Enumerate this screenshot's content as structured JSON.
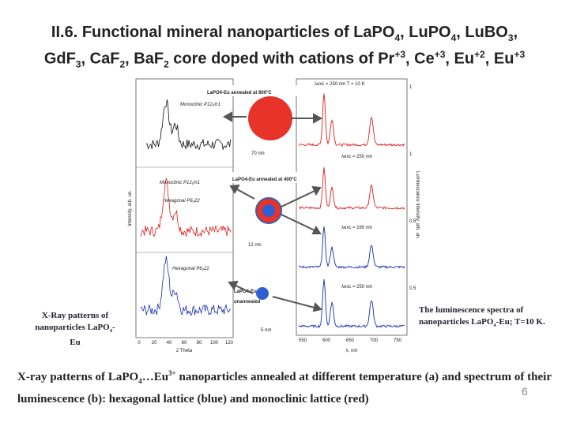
{
  "slide": {
    "title": {
      "line1": [
        {
          "text": "II.6. Functional mineral nanoparticles of LaPO"
        },
        {
          "text": "4",
          "pos": "sub"
        },
        {
          "text": ", LuPO"
        },
        {
          "text": "4",
          "pos": "sub"
        },
        {
          "text": ", LuBO"
        },
        {
          "text": "3",
          "pos": "sub"
        },
        {
          "text": ","
        }
      ],
      "line2": [
        {
          "text": "GdF"
        },
        {
          "text": "3",
          "pos": "sub"
        },
        {
          "text": ", CaF"
        },
        {
          "text": "2",
          "pos": "sub"
        },
        {
          "text": ", BaF"
        },
        {
          "text": "2",
          "pos": "sub"
        },
        {
          "text": " core doped with cations of Pr"
        },
        {
          "text": "+3",
          "pos": "sup"
        },
        {
          "text": ", Ce"
        },
        {
          "text": "+3",
          "pos": "sup"
        },
        {
          "text": ", Eu"
        },
        {
          "text": "+2",
          "pos": "sup"
        },
        {
          "text": ", Eu"
        },
        {
          "text": "+3",
          "pos": "sup"
        }
      ]
    },
    "figure": {
      "xrd_axis_label": "Intensity, arb. un.",
      "xrd_x_label": "2 Theta",
      "xrd_x_ticks": [
        "0",
        "20",
        "40",
        "60",
        "80",
        "100",
        "120"
      ],
      "lum_axis_label": "Luminescence Intensity, arb. un.",
      "lum_x_label": "λ, nm",
      "lum_x_ticks": [
        "550",
        "600",
        "650",
        "700",
        "750"
      ],
      "lum_y_ticks": [
        "1",
        "1",
        "0.5",
        "0.5"
      ],
      "lum_exc": [
        "λexc = 250 nm   T = 10 K",
        "λexc = 250 nm",
        "λexc = 160 nm",
        "λexc = 250 nm"
      ],
      "phase_mono_1": "Monoclinic P12₁/n1",
      "phase_mono_2": "Monoclinic P12₁/n1",
      "phase_hex_1": "Hexagonal P6₂22",
      "phase_hex_2": "Hexagonal P6₂22",
      "annot_800": "LaPO4-Eu annealed at 800°C",
      "annot_400": "LaPO4-Eu annealed at 400°C",
      "annot_un_1": "LaPO4-Eu",
      "annot_un_2": "unannealed",
      "size_70": "70 nm",
      "size_12": "12 nm",
      "size_5": "5 nm"
    },
    "caption_left": [
      {
        "text": "X-Ray patterns of nanoparticles LaPO"
      },
      {
        "text": "4",
        "pos": "sub"
      },
      {
        "text": "-Eu"
      }
    ],
    "caption_right": [
      {
        "text": "The luminescence spectra of nanoparticles LaPO"
      },
      {
        "text": "4",
        "pos": "sub"
      },
      {
        "text": "-Eu; T=10 K."
      }
    ],
    "description": [
      {
        "text": "X-ray patterns of LaPO"
      },
      {
        "text": "4",
        "pos": "sub"
      },
      {
        "text": "…Eu"
      },
      {
        "text": "3+",
        "pos": "sup"
      },
      {
        "text": " nanoparticles annealed at different temperature (a) and spectrum of their luminescence (b): hexagonal lattice (blue) and monoclinic lattice (red)"
      }
    ],
    "page_number": "6"
  }
}
